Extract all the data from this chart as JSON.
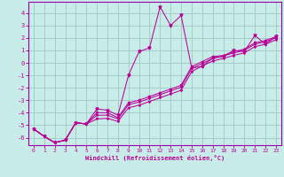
{
  "xlabel": "Windchill (Refroidissement éolien,°C)",
  "bg_color": "#c8ede8",
  "grid_color": "#a0c8c4",
  "line_color": "#bb0099",
  "spine_color": "#9900aa",
  "xlim": [
    -0.5,
    23.5
  ],
  "ylim": [
    -6.6,
    4.9
  ],
  "xticks": [
    0,
    1,
    2,
    3,
    4,
    5,
    6,
    7,
    8,
    9,
    10,
    11,
    12,
    13,
    14,
    15,
    16,
    17,
    18,
    19,
    20,
    21,
    22,
    23
  ],
  "yticks": [
    -6,
    -5,
    -4,
    -3,
    -2,
    -1,
    0,
    1,
    2,
    3,
    4
  ],
  "x": [
    0,
    1,
    2,
    3,
    4,
    5,
    6,
    7,
    8,
    9,
    10,
    11,
    12,
    13,
    14,
    15,
    16,
    17,
    18,
    19,
    20,
    21,
    22,
    23
  ],
  "line_main": [
    -5.3,
    -5.9,
    -6.4,
    -6.2,
    -4.8,
    -4.9,
    -3.7,
    -3.8,
    -4.2,
    -1.0,
    0.9,
    1.2,
    4.5,
    3.0,
    3.8,
    -0.4,
    -0.3,
    0.4,
    0.5,
    1.0,
    0.9,
    2.2,
    1.5,
    2.1
  ],
  "line2": [
    -5.3,
    -5.9,
    -6.4,
    -6.2,
    -4.8,
    -4.9,
    -4.0,
    -4.0,
    -4.4,
    -3.2,
    -3.0,
    -2.7,
    -2.4,
    -2.1,
    -1.8,
    -0.3,
    0.1,
    0.5,
    0.6,
    0.9,
    1.1,
    1.6,
    1.8,
    2.1
  ],
  "line3": [
    -5.3,
    -5.9,
    -6.4,
    -6.2,
    -4.8,
    -4.9,
    -4.2,
    -4.2,
    -4.5,
    -3.35,
    -3.15,
    -2.85,
    -2.55,
    -2.25,
    -1.95,
    -0.45,
    -0.05,
    0.35,
    0.55,
    0.8,
    1.0,
    1.5,
    1.7,
    2.0
  ],
  "line4": [
    -5.3,
    -5.9,
    -6.4,
    -6.2,
    -4.8,
    -4.9,
    -4.5,
    -4.45,
    -4.7,
    -3.6,
    -3.4,
    -3.1,
    -2.8,
    -2.5,
    -2.2,
    -0.7,
    -0.25,
    0.15,
    0.35,
    0.6,
    0.8,
    1.3,
    1.5,
    1.85
  ]
}
